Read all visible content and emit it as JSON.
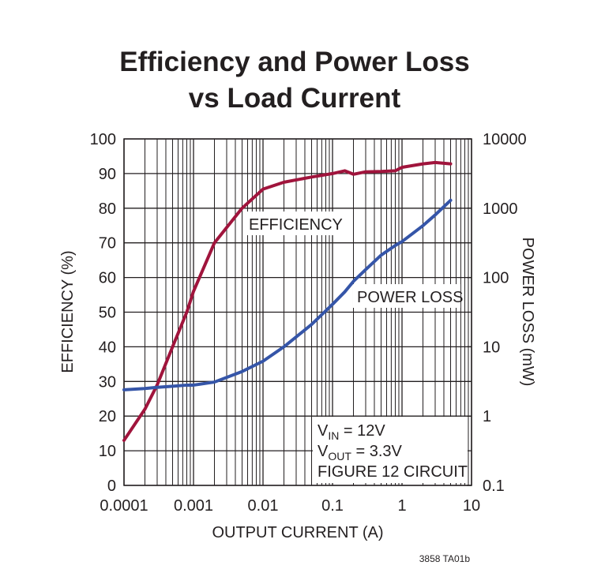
{
  "chart_data": {
    "type": "line",
    "title": [
      "Efficiency and Power Loss",
      "vs Load Current"
    ],
    "xlabel": "OUTPUT CURRENT (A)",
    "ylabel": "EFFICIENCY (%)",
    "y2label": "POWER LOSS (mW)",
    "xlog": true,
    "y2log": true,
    "grid": true,
    "xlim": [
      0.0001,
      10
    ],
    "xticks": [
      0.0001,
      0.001,
      0.01,
      0.1,
      1,
      10
    ],
    "xminorticks": [
      0.0002,
      0.0003,
      0.0004,
      0.0005,
      0.0006,
      0.0007,
      0.0008,
      0.0009,
      0.002,
      0.003,
      0.004,
      0.005,
      0.006,
      0.007,
      0.008,
      0.009,
      0.02,
      0.03,
      0.04,
      0.05,
      0.06,
      0.07,
      0.08,
      0.09,
      0.2,
      0.3,
      0.4,
      0.5,
      0.6,
      0.7,
      0.8,
      0.9,
      2,
      3,
      4,
      5,
      6,
      7,
      8,
      9
    ],
    "ylim": [
      0,
      100
    ],
    "yticks": [
      0,
      10,
      20,
      30,
      40,
      50,
      60,
      70,
      80,
      90,
      100
    ],
    "y2lim": [
      0.1,
      10000
    ],
    "y2ticks": [
      0.1,
      1,
      10,
      100,
      1000,
      10000
    ],
    "x": [
      0.0001,
      0.0002,
      0.0003,
      0.0005,
      0.0008,
      0.001,
      0.002,
      0.005,
      0.01,
      0.02,
      0.05,
      0.1,
      0.15,
      0.2,
      0.3,
      0.5,
      0.8,
      1,
      2,
      3,
      5
    ],
    "series": [
      {
        "name": "EFFICIENCY",
        "color": "#a0143c",
        "values": [
          13,
          22,
          29,
          40,
          50,
          56,
          70,
          80,
          85.5,
          87.5,
          89,
          90,
          90.8,
          89.8,
          90.5,
          90.6,
          90.8,
          91.8,
          92.8,
          93.2,
          92.8
        ]
      },
      {
        "name": "POWER LOSS",
        "color": "#3555a8",
        "axis": "y2",
        "values": [
          2.4,
          2.5,
          2.6,
          2.7,
          2.8,
          2.8,
          3.1,
          4.4,
          6.2,
          10,
          21,
          41,
          62,
          88,
          130,
          210,
          290,
          330,
          560,
          800,
          1300
        ]
      }
    ],
    "conditions": [
      {
        "base": "V",
        "sub": "IN",
        "rest": " = 12V"
      },
      {
        "base": "V",
        "sub": "OUT",
        "rest": " = 3.3V"
      },
      {
        "base": "FIGURE 12 CIRCUIT"
      }
    ],
    "note": "3858 TA01b"
  }
}
